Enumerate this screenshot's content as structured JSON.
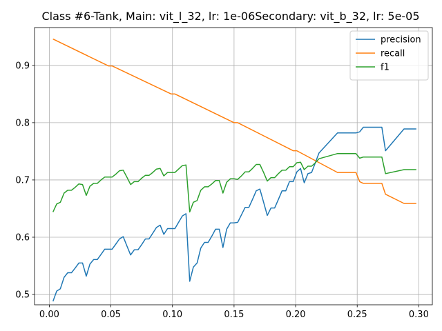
{
  "chart_data": {
    "type": "line",
    "title": "Class #6-Tank, Main: vit_l_32, lr: 1e-06Secondary: vit_b_32, lr: 5e-05",
    "xlabel": "",
    "ylabel": "",
    "xlim": [
      -0.012,
      0.311
    ],
    "ylim": [
      0.482,
      0.966
    ],
    "x_ticks": [
      0.0,
      0.05,
      0.1,
      0.15,
      0.2,
      0.25,
      0.3
    ],
    "x_tick_labels": [
      "0.00",
      "0.05",
      "0.10",
      "0.15",
      "0.20",
      "0.25",
      "0.30"
    ],
    "y_ticks": [
      0.5,
      0.6,
      0.7,
      0.8,
      0.9
    ],
    "y_tick_labels": [
      "0.5",
      "0.6",
      "0.7",
      "0.8",
      "0.9"
    ],
    "grid": true,
    "legend_position": "top-right",
    "series": [
      {
        "name": "precision",
        "color": "#1f77b4",
        "points": [
          [
            0.003,
            0.488
          ],
          [
            0.006,
            0.506
          ],
          [
            0.009,
            0.51
          ],
          [
            0.012,
            0.53
          ],
          [
            0.015,
            0.538
          ],
          [
            0.018,
            0.538
          ],
          [
            0.021,
            0.546
          ],
          [
            0.024,
            0.555
          ],
          [
            0.027,
            0.555
          ],
          [
            0.03,
            0.532
          ],
          [
            0.033,
            0.553
          ],
          [
            0.036,
            0.561
          ],
          [
            0.039,
            0.561
          ],
          [
            0.042,
            0.57
          ],
          [
            0.045,
            0.579
          ],
          [
            0.048,
            0.579
          ],
          [
            0.051,
            0.579
          ],
          [
            0.054,
            0.588
          ],
          [
            0.057,
            0.597
          ],
          [
            0.06,
            0.601
          ],
          [
            0.063,
            0.585
          ],
          [
            0.066,
            0.569
          ],
          [
            0.069,
            0.578
          ],
          [
            0.072,
            0.578
          ],
          [
            0.075,
            0.587
          ],
          [
            0.078,
            0.597
          ],
          [
            0.081,
            0.597
          ],
          [
            0.084,
            0.607
          ],
          [
            0.087,
            0.617
          ],
          [
            0.09,
            0.621
          ],
          [
            0.093,
            0.605
          ],
          [
            0.096,
            0.615
          ],
          [
            0.099,
            0.615
          ],
          [
            0.102,
            0.615
          ],
          [
            0.105,
            0.626
          ],
          [
            0.108,
            0.637
          ],
          [
            0.111,
            0.641
          ],
          [
            0.114,
            0.523
          ],
          [
            0.117,
            0.548
          ],
          [
            0.12,
            0.555
          ],
          [
            0.123,
            0.581
          ],
          [
            0.126,
            0.591
          ],
          [
            0.129,
            0.591
          ],
          [
            0.132,
            0.602
          ],
          [
            0.135,
            0.614
          ],
          [
            0.138,
            0.614
          ],
          [
            0.141,
            0.582
          ],
          [
            0.144,
            0.614
          ],
          [
            0.147,
            0.625
          ],
          [
            0.15,
            0.625
          ],
          [
            0.153,
            0.626
          ],
          [
            0.156,
            0.639
          ],
          [
            0.159,
            0.652
          ],
          [
            0.162,
            0.652
          ],
          [
            0.165,
            0.666
          ],
          [
            0.168,
            0.681
          ],
          [
            0.171,
            0.684
          ],
          [
            0.174,
            0.661
          ],
          [
            0.177,
            0.638
          ],
          [
            0.18,
            0.651
          ],
          [
            0.183,
            0.651
          ],
          [
            0.186,
            0.666
          ],
          [
            0.189,
            0.681
          ],
          [
            0.192,
            0.681
          ],
          [
            0.195,
            0.697
          ],
          [
            0.198,
            0.697
          ],
          [
            0.201,
            0.714
          ],
          [
            0.204,
            0.72
          ],
          [
            0.207,
            0.695
          ],
          [
            0.21,
            0.711
          ],
          [
            0.213,
            0.713
          ],
          [
            0.216,
            0.73
          ],
          [
            0.219,
            0.747
          ],
          [
            0.234,
            0.782
          ],
          [
            0.249,
            0.782
          ],
          [
            0.252,
            0.784
          ],
          [
            0.255,
            0.792
          ],
          [
            0.27,
            0.792
          ],
          [
            0.273,
            0.751
          ],
          [
            0.288,
            0.789
          ],
          [
            0.298,
            0.789
          ]
        ]
      },
      {
        "name": "recall",
        "color": "#ff7f0e",
        "points": [
          [
            0.003,
            0.946
          ],
          [
            0.048,
            0.899
          ],
          [
            0.051,
            0.899
          ],
          [
            0.099,
            0.85
          ],
          [
            0.102,
            0.85
          ],
          [
            0.15,
            0.8
          ],
          [
            0.153,
            0.8
          ],
          [
            0.198,
            0.751
          ],
          [
            0.201,
            0.751
          ],
          [
            0.234,
            0.713
          ],
          [
            0.249,
            0.713
          ],
          [
            0.252,
            0.697
          ],
          [
            0.255,
            0.694
          ],
          [
            0.27,
            0.694
          ],
          [
            0.273,
            0.675
          ],
          [
            0.288,
            0.659
          ],
          [
            0.298,
            0.659
          ]
        ]
      },
      {
        "name": "f1",
        "color": "#2ca02c",
        "points": [
          [
            0.003,
            0.644
          ],
          [
            0.006,
            0.658
          ],
          [
            0.009,
            0.661
          ],
          [
            0.012,
            0.677
          ],
          [
            0.015,
            0.682
          ],
          [
            0.018,
            0.682
          ],
          [
            0.021,
            0.687
          ],
          [
            0.024,
            0.693
          ],
          [
            0.027,
            0.692
          ],
          [
            0.03,
            0.673
          ],
          [
            0.033,
            0.689
          ],
          [
            0.036,
            0.694
          ],
          [
            0.039,
            0.694
          ],
          [
            0.042,
            0.7
          ],
          [
            0.045,
            0.705
          ],
          [
            0.048,
            0.705
          ],
          [
            0.051,
            0.705
          ],
          [
            0.054,
            0.71
          ],
          [
            0.057,
            0.716
          ],
          [
            0.06,
            0.717
          ],
          [
            0.063,
            0.705
          ],
          [
            0.066,
            0.692
          ],
          [
            0.069,
            0.697
          ],
          [
            0.072,
            0.697
          ],
          [
            0.075,
            0.703
          ],
          [
            0.078,
            0.708
          ],
          [
            0.081,
            0.708
          ],
          [
            0.084,
            0.713
          ],
          [
            0.087,
            0.719
          ],
          [
            0.09,
            0.72
          ],
          [
            0.093,
            0.707
          ],
          [
            0.096,
            0.713
          ],
          [
            0.099,
            0.713
          ],
          [
            0.102,
            0.713
          ],
          [
            0.105,
            0.719
          ],
          [
            0.108,
            0.725
          ],
          [
            0.111,
            0.726
          ],
          [
            0.114,
            0.644
          ],
          [
            0.117,
            0.661
          ],
          [
            0.12,
            0.664
          ],
          [
            0.123,
            0.682
          ],
          [
            0.126,
            0.688
          ],
          [
            0.129,
            0.688
          ],
          [
            0.132,
            0.693
          ],
          [
            0.135,
            0.699
          ],
          [
            0.138,
            0.699
          ],
          [
            0.141,
            0.677
          ],
          [
            0.144,
            0.696
          ],
          [
            0.147,
            0.702
          ],
          [
            0.15,
            0.702
          ],
          [
            0.153,
            0.701
          ],
          [
            0.156,
            0.707
          ],
          [
            0.159,
            0.714
          ],
          [
            0.162,
            0.714
          ],
          [
            0.165,
            0.72
          ],
          [
            0.168,
            0.727
          ],
          [
            0.171,
            0.727
          ],
          [
            0.174,
            0.713
          ],
          [
            0.177,
            0.698
          ],
          [
            0.18,
            0.704
          ],
          [
            0.183,
            0.704
          ],
          [
            0.186,
            0.711
          ],
          [
            0.189,
            0.717
          ],
          [
            0.192,
            0.717
          ],
          [
            0.195,
            0.723
          ],
          [
            0.198,
            0.723
          ],
          [
            0.201,
            0.73
          ],
          [
            0.204,
            0.731
          ],
          [
            0.207,
            0.718
          ],
          [
            0.21,
            0.724
          ],
          [
            0.213,
            0.724
          ],
          [
            0.216,
            0.73
          ],
          [
            0.219,
            0.737
          ],
          [
            0.234,
            0.746
          ],
          [
            0.249,
            0.746
          ],
          [
            0.252,
            0.738
          ],
          [
            0.255,
            0.74
          ],
          [
            0.27,
            0.74
          ],
          [
            0.273,
            0.711
          ],
          [
            0.288,
            0.718
          ],
          [
            0.298,
            0.718
          ]
        ]
      }
    ]
  }
}
